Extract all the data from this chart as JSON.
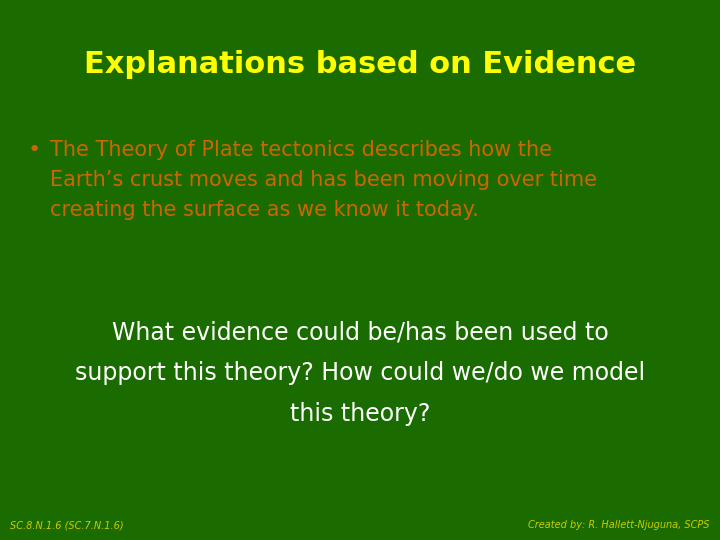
{
  "background_color": "#1a6b00",
  "title": "Explanations based on Evidence",
  "title_color": "#ffff00",
  "title_fontsize": 22,
  "bullet_text_line1": "The Theory of Plate tectonics describes how the",
  "bullet_text_line2": "Earth’s crust moves and has been moving over time",
  "bullet_text_line3": "creating the surface as we know it today.",
  "bullet_color": "#cc6600",
  "bullet_fontsize": 15,
  "question_line1": "What evidence could be/has been used to",
  "question_line2": "support this theory? How could we/do we model",
  "question_line3": "this theory?",
  "question_color": "#ffffff",
  "question_fontsize": 17,
  "footer_left": "SC.8.N.1.6 (SC.7.N.1.6)",
  "footer_right": "Created by: R. Hallett-Njuguna, SCPS",
  "footer_color": "#cccc00",
  "footer_fontsize": 7,
  "bullet_point": "•"
}
